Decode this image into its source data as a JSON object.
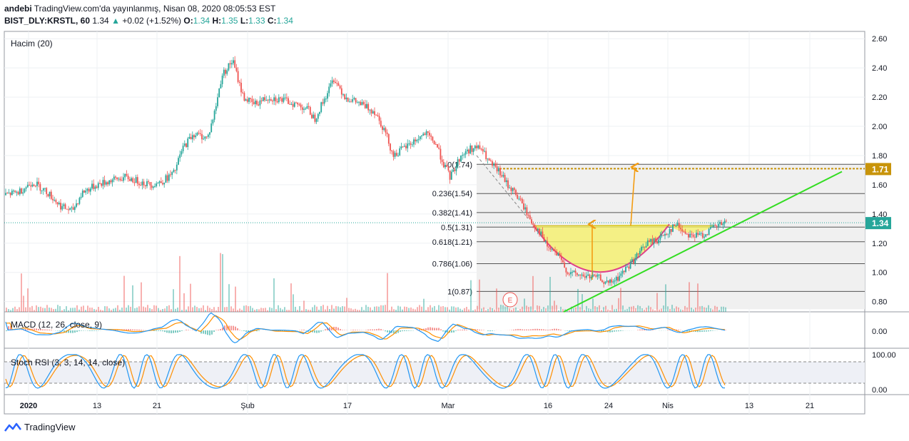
{
  "header": {
    "author": "andebi",
    "published": "TradingView.com'da yayınlanmış, Nisan 08, 2020 08:05:53 EST",
    "symbol": "BIST_DLY:KRSTL, 60",
    "last": "1.34",
    "change": "+0.02 (+1.52%)",
    "o_label": "O:",
    "o": "1.34",
    "h_label": "H:",
    "h": "1.35",
    "l_label": "L:",
    "l": "1.33",
    "c_label": "C:",
    "c": "1.34"
  },
  "colors": {
    "up": "#26a69a",
    "down": "#ef5350",
    "trend": "#33dd22",
    "arrow": "#f39c12",
    "cup_fill": "#f5f06a",
    "cup_line": "#e0408a",
    "target": "#c8940a",
    "price_badge": "#26a69a"
  },
  "chart_data": {
    "type": "candlestick",
    "price_axis": {
      "ticks": [
        "2.60",
        "2.40",
        "2.20",
        "2.00",
        "1.80",
        "1.60",
        "1.40",
        "1.20",
        "1.00",
        "0.80"
      ],
      "range": [
        0.73,
        2.65
      ]
    },
    "time_axis": [
      "2020",
      "13",
      "21",
      "Şub",
      "17",
      "Mar",
      "16",
      "24",
      "Nis",
      "13",
      "21"
    ],
    "indicator_labels": {
      "volume": "Hacim (20)",
      "macd": "MACD (12, 26, close, 9)",
      "stoch": "Stoch RSI (3, 3, 14, 14, close)"
    },
    "macd_axis": [
      "0.00"
    ],
    "stoch_axis": [
      "100.00",
      "0.00"
    ],
    "badges": {
      "target": "1.71",
      "last": "1.34"
    },
    "fib_levels": [
      {
        "label": "0(1.74)",
        "value": 1.74
      },
      {
        "label": "0.236(1.54)",
        "value": 1.54
      },
      {
        "label": "0.382(1.41)",
        "value": 1.41
      },
      {
        "label": "0.5(1.31)",
        "value": 1.31
      },
      {
        "label": "0.618(1.21)",
        "value": 1.21
      },
      {
        "label": "0.786(1.06)",
        "value": 1.06
      },
      {
        "label": "1(0.87)",
        "value": 0.87
      }
    ],
    "close_path": [
      [
        0,
        1.53
      ],
      [
        20,
        1.55
      ],
      [
        40,
        1.62
      ],
      [
        60,
        1.55
      ],
      [
        80,
        1.45
      ],
      [
        95,
        1.42
      ],
      [
        110,
        1.55
      ],
      [
        130,
        1.6
      ],
      [
        150,
        1.63
      ],
      [
        170,
        1.65
      ],
      [
        190,
        1.62
      ],
      [
        205,
        1.6
      ],
      [
        220,
        1.62
      ],
      [
        238,
        1.68
      ],
      [
        250,
        1.85
      ],
      [
        265,
        1.95
      ],
      [
        285,
        1.92
      ],
      [
        295,
        2.1
      ],
      [
        305,
        2.35
      ],
      [
        320,
        2.45
      ],
      [
        335,
        2.2
      ],
      [
        350,
        2.15
      ],
      [
        370,
        2.2
      ],
      [
        390,
        2.18
      ],
      [
        410,
        2.15
      ],
      [
        425,
        2.12
      ],
      [
        435,
        2.05
      ],
      [
        450,
        2.2
      ],
      [
        462,
        2.33
      ],
      [
        478,
        2.2
      ],
      [
        500,
        2.15
      ],
      [
        520,
        2.1
      ],
      [
        535,
        1.95
      ],
      [
        545,
        1.8
      ],
      [
        560,
        1.85
      ],
      [
        575,
        1.9
      ],
      [
        590,
        1.95
      ],
      [
        605,
        1.88
      ],
      [
        615,
        1.75
      ],
      [
        625,
        1.65
      ],
      [
        640,
        1.8
      ],
      [
        655,
        1.85
      ],
      [
        668,
        1.85
      ],
      [
        680,
        1.75
      ],
      [
        695,
        1.68
      ],
      [
        705,
        1.6
      ],
      [
        715,
        1.55
      ],
      [
        728,
        1.45
      ],
      [
        738,
        1.35
      ],
      [
        750,
        1.28
      ],
      [
        760,
        1.18
      ],
      [
        775,
        1.12
      ],
      [
        790,
        1.0
      ],
      [
        805,
        0.98
      ],
      [
        820,
        0.97
      ],
      [
        835,
        0.96
      ],
      [
        845,
        0.92
      ],
      [
        858,
        0.95
      ],
      [
        870,
        1.02
      ],
      [
        885,
        1.1
      ],
      [
        900,
        1.2
      ],
      [
        915,
        1.22
      ],
      [
        930,
        1.28
      ],
      [
        942,
        1.33
      ],
      [
        955,
        1.27
      ],
      [
        968,
        1.25
      ],
      [
        980,
        1.26
      ],
      [
        992,
        1.3
      ],
      [
        1005,
        1.33
      ],
      [
        1016,
        1.34
      ]
    ],
    "last_price": 1.34,
    "target_price": 1.71
  }
}
